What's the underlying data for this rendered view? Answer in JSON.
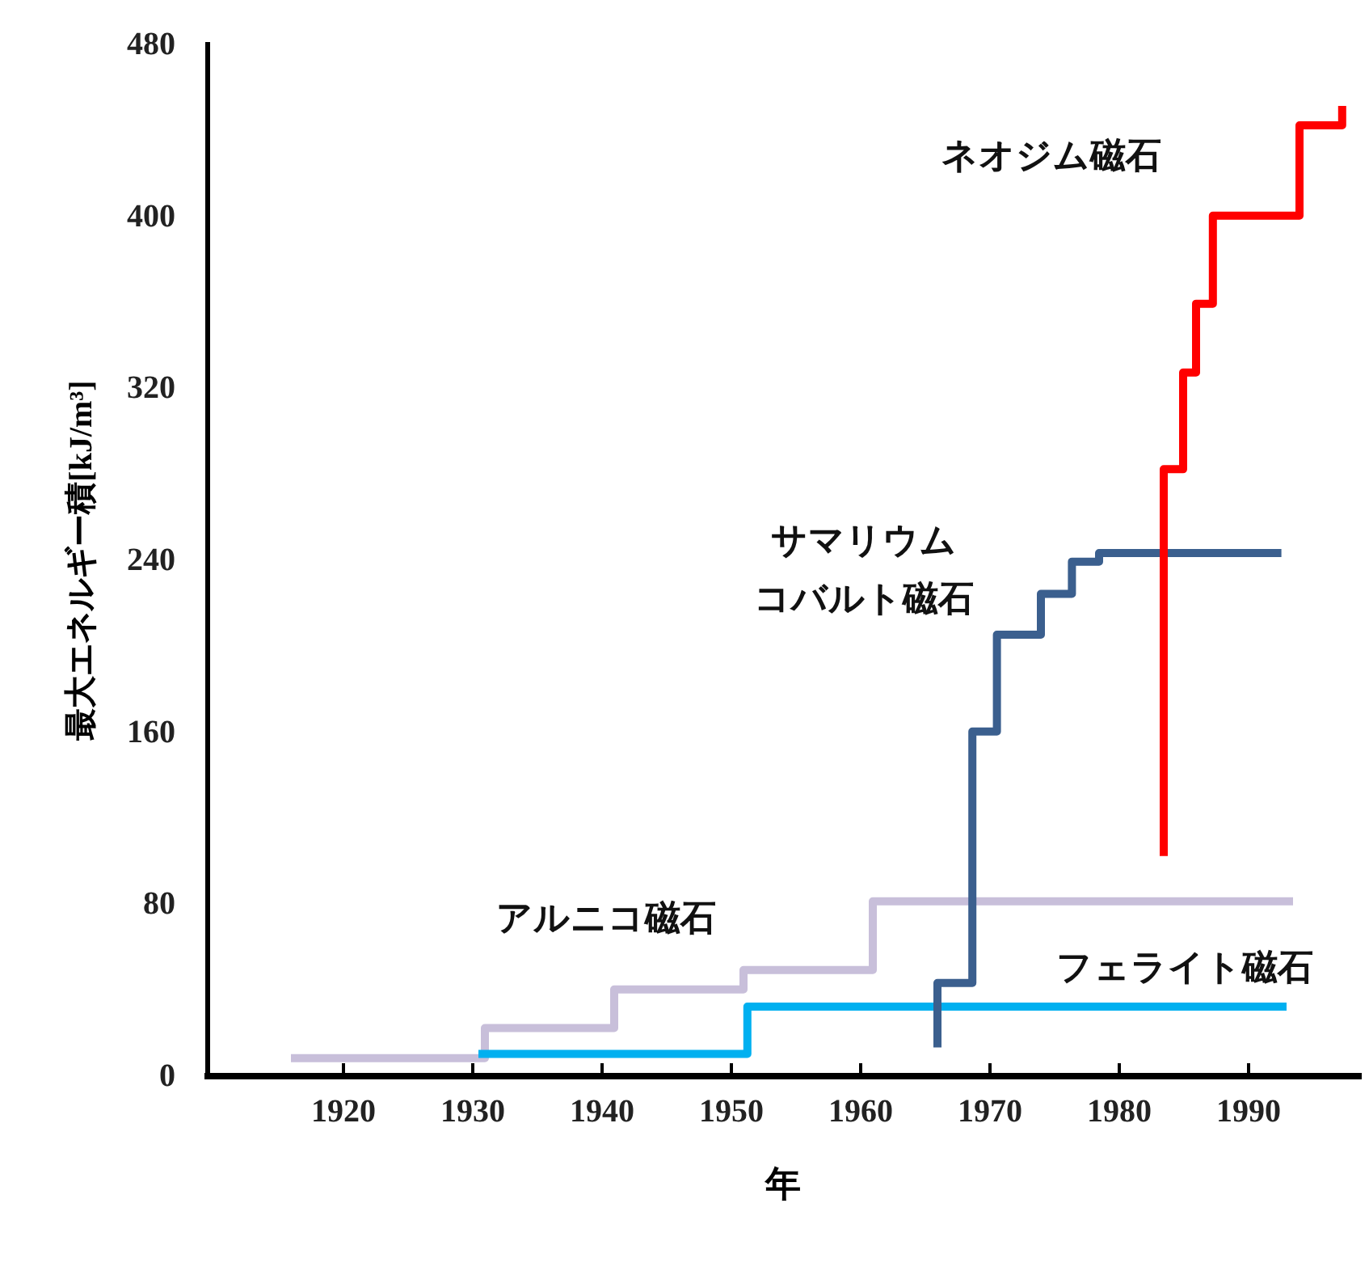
{
  "chart_data": {
    "type": "step",
    "xlabel": "年",
    "ylabel": "最大エネルギー積[kJ/m³]",
    "xlim": [
      1909.5,
      1998.5
    ],
    "xticks": [
      1920,
      1930,
      1940,
      1950,
      1960,
      1970,
      1980,
      1990
    ],
    "ylim": [
      0,
      480
    ],
    "yticks": [
      0,
      80,
      160,
      240,
      320,
      400,
      480
    ],
    "grid": false,
    "legend": false,
    "series": [
      {
        "name": "アルニコ磁石",
        "color": "#c8bfda",
        "x": [
          1916,
          1931,
          1941,
          1951,
          1961,
          1993.5
        ],
        "values": [
          8,
          22,
          40,
          49,
          81,
          81
        ]
      },
      {
        "name": "フェライト磁石",
        "color": "#00b0f0",
        "x": [
          1930.5,
          1951.3,
          1993
        ],
        "values": [
          10,
          32,
          32
        ]
      },
      {
        "name": "サマリウムコバルト磁石",
        "color": "#3b5f8e",
        "x": [
          1966,
          1966,
          1968.7,
          1970.6,
          1974,
          1976.4,
          1978.5,
          1992.6
        ],
        "values": [
          13,
          43,
          160,
          205,
          224,
          239,
          243,
          243
        ]
      },
      {
        "name": "ネオジム磁石",
        "color": "#ff0000",
        "x": [
          1983.5,
          1983.5,
          1985,
          1986,
          1987.3,
          1994,
          1997.3
        ],
        "values": [
          102,
          282,
          327,
          359,
          400,
          442,
          451
        ]
      }
    ]
  }
}
